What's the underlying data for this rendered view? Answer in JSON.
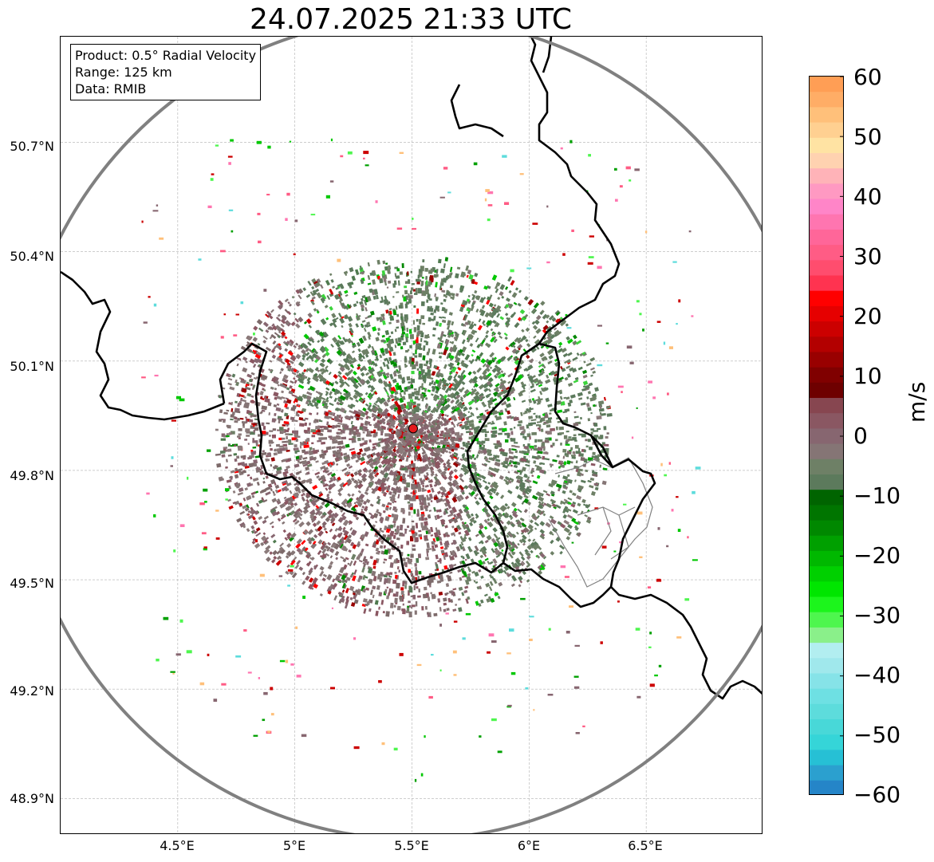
{
  "title": "24.07.2025 21:33 UTC",
  "info": {
    "product": "Product: 0.5° Radial Velocity",
    "range": "Range: 125 km",
    "source": "Data: RMIB"
  },
  "axes": {
    "lat_ticks": [
      "50.7°N",
      "50.4°N",
      "50.1°N",
      "49.8°N",
      "49.5°N",
      "49.2°N",
      "48.9°N"
    ],
    "lon_ticks": [
      "4.5°E",
      "5°E",
      "5.5°E",
      "6°E",
      "6.5°E"
    ],
    "lon_range": [
      4.0,
      7.0
    ],
    "lat_range": [
      48.8,
      50.99
    ]
  },
  "radar_site": {
    "lon": 5.505,
    "lat": 49.915
  },
  "colorbar": {
    "unit": "m/s",
    "min": -60,
    "max": 60,
    "tick_labels": [
      "60",
      "50",
      "40",
      "30",
      "20",
      "10",
      "0",
      "−10",
      "−20",
      "−30",
      "−40",
      "−50",
      "−60"
    ],
    "colors_top_to_bottom": [
      "#ff9e55",
      "#ffad66",
      "#ffc07a",
      "#ffd091",
      "#ffe3a3",
      "#ffd2b0",
      "#ffb3b8",
      "#ff99c2",
      "#ff85c8",
      "#ff75b0",
      "#ff6699",
      "#ff5c85",
      "#ff4d6e",
      "#ff3350",
      "#ff0000",
      "#e60000",
      "#cc0000",
      "#b30000",
      "#990000",
      "#800000",
      "#6e0000",
      "#874650",
      "#8a5762",
      "#876670",
      "#857575",
      "#6e8066",
      "#5c7a5c",
      "#006400",
      "#007500",
      "#008800",
      "#00a000",
      "#00b800",
      "#00d000",
      "#00e600",
      "#1cf51c",
      "#4ef64e",
      "#8af08a",
      "#b2eef0",
      "#a0e8ec",
      "#86e3e8",
      "#6ee0e3",
      "#5ddcdc",
      "#48d8d8",
      "#35d5d8",
      "#26c0d5",
      "#2ba0cf",
      "#2585c8"
    ]
  },
  "legend_colors": {
    "border": "#000000",
    "range_ring": "#808080",
    "site": "#e41a1c"
  }
}
